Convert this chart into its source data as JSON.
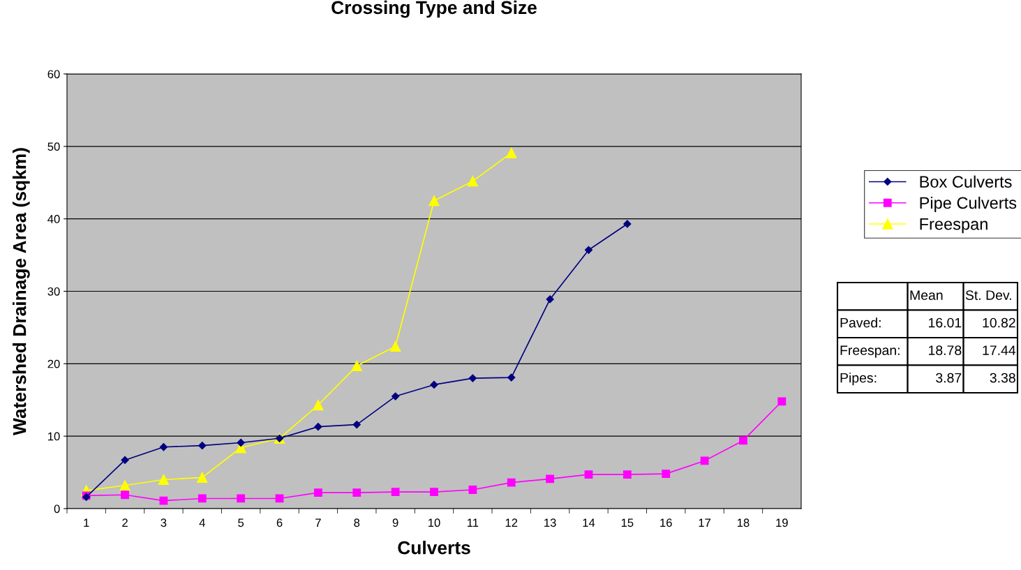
{
  "chart_data": {
    "type": "line",
    "title": "Crossing Type and Size",
    "xlabel": "Culverts",
    "ylabel": "Watershed Drainage Area (sqkm)",
    "categories": [
      "1",
      "2",
      "3",
      "4",
      "5",
      "6",
      "7",
      "8",
      "9",
      "10",
      "11",
      "12",
      "13",
      "14",
      "15",
      "16",
      "17",
      "18",
      "19"
    ],
    "series": [
      {
        "name": "Box Culverts",
        "color": "#000080",
        "marker": "diamond",
        "values": [
          1.6,
          6.7,
          8.5,
          8.7,
          9.1,
          9.7,
          11.3,
          11.6,
          15.5,
          17.1,
          18.0,
          18.1,
          28.9,
          35.7,
          39.3,
          null,
          null,
          null,
          null
        ]
      },
      {
        "name": "Pipe Culverts",
        "color": "#ff00ff",
        "marker": "square",
        "values": [
          1.8,
          1.9,
          1.1,
          1.4,
          1.4,
          1.4,
          2.2,
          2.2,
          2.3,
          2.3,
          2.6,
          3.6,
          4.1,
          4.7,
          4.7,
          4.8,
          6.6,
          9.4,
          14.8
        ]
      },
      {
        "name": "Freespan",
        "color": "#ffff00",
        "marker": "triangle",
        "values": [
          2.5,
          3.2,
          4.0,
          4.3,
          8.4,
          9.7,
          14.3,
          19.7,
          22.4,
          42.5,
          45.2,
          49.1,
          null,
          null,
          null,
          null,
          null,
          null,
          null
        ]
      }
    ],
    "ylim": [
      0,
      60
    ],
    "yticks": [
      0,
      10,
      20,
      30,
      40,
      50,
      60
    ],
    "grid": "y",
    "legend": "right",
    "line_style": "solid",
    "annotations": [
      "Mean",
      "St. Dev.",
      "Paved:",
      "16.01",
      "10.82",
      "Freespan:",
      "18.78",
      "17.44",
      "Pipes:",
      "3.87",
      "3.38"
    ]
  }
}
